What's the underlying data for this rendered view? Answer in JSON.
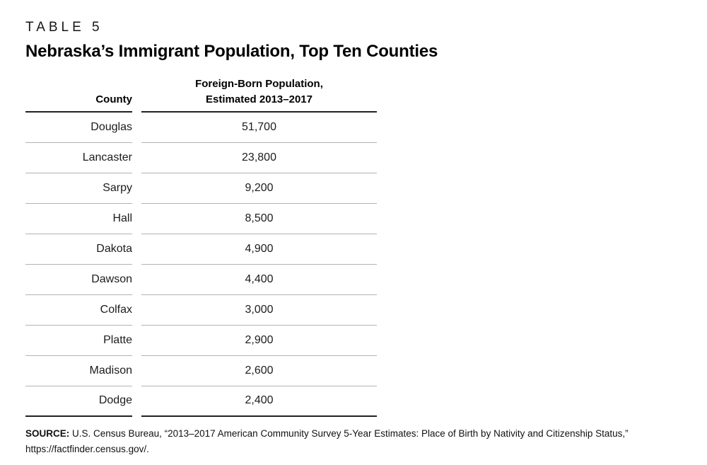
{
  "figure": {
    "label": "TABLE 5",
    "title": "Nebraska’s Immigrant Population, Top Ten Counties"
  },
  "table": {
    "columns": [
      {
        "label": "County"
      },
      {
        "line1": "Foreign-Born Population,",
        "line2": "Estimated 2013–2017"
      }
    ],
    "rows": [
      {
        "county": "Douglas",
        "population": "51,700"
      },
      {
        "county": "Lancaster",
        "population": "23,800"
      },
      {
        "county": "Sarpy",
        "population": "9,200"
      },
      {
        "county": "Hall",
        "population": "8,500"
      },
      {
        "county": "Dakota",
        "population": "4,900"
      },
      {
        "county": "Dawson",
        "population": "4,400"
      },
      {
        "county": "Colfax",
        "population": "3,000"
      },
      {
        "county": "Platte",
        "population": "2,900"
      },
      {
        "county": "Madison",
        "population": "2,600"
      },
      {
        "county": "Dodge",
        "population": "2,400"
      }
    ]
  },
  "source": {
    "label": "SOURCE:",
    "text": "U.S. Census Bureau, “2013–2017 American Community Survey 5-Year Estimates: Place of Birth by Nativity and Citizenship Status,”",
    "url_line": "https://factfinder.census.gov/."
  },
  "colors": {
    "text": "#111111",
    "divider": "#b3b3b3",
    "strong_rule": "#222222"
  }
}
